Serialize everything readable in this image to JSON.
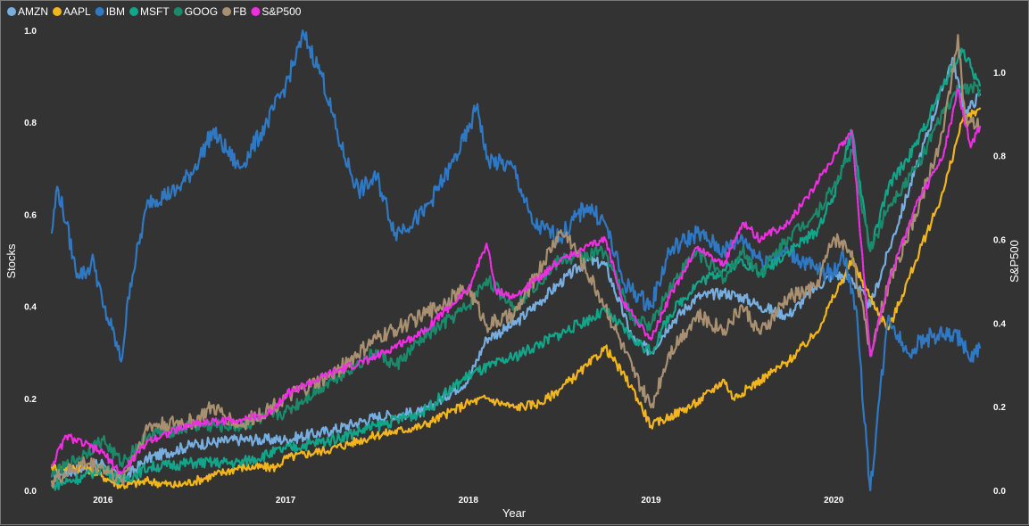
{
  "chart_data": {
    "type": "line",
    "xlabel": "Year",
    "ylabel": "Stocks",
    "y2label": "S&P500",
    "x_ticks": [
      "2016",
      "2017",
      "2018",
      "2019",
      "2020"
    ],
    "x_range": [
      2015.72,
      2020.8
    ],
    "ylim": [
      0,
      1
    ],
    "y_ticks": [
      "0.0",
      "0.2",
      "0.4",
      "0.6",
      "0.8",
      "1.0"
    ],
    "y2lim": [
      0,
      1.1
    ],
    "y2_ticks": [
      "0.0",
      "0.2",
      "0.4",
      "0.6",
      "0.8",
      "1.0"
    ],
    "grid": false,
    "legend_position": "top-left",
    "series": [
      {
        "name": "AMZN",
        "color": "#77aee0",
        "axis": "left",
        "points": [
          [
            2015.72,
            0.03
          ],
          [
            2016.0,
            0.06
          ],
          [
            2016.1,
            0.02
          ],
          [
            2016.25,
            0.07
          ],
          [
            2016.5,
            0.1
          ],
          [
            2016.75,
            0.11
          ],
          [
            2017.0,
            0.11
          ],
          [
            2017.25,
            0.13
          ],
          [
            2017.5,
            0.16
          ],
          [
            2017.75,
            0.17
          ],
          [
            2018.0,
            0.24
          ],
          [
            2018.1,
            0.33
          ],
          [
            2018.25,
            0.36
          ],
          [
            2018.5,
            0.45
          ],
          [
            2018.65,
            0.5
          ],
          [
            2018.75,
            0.49
          ],
          [
            2018.9,
            0.33
          ],
          [
            2019.0,
            0.3
          ],
          [
            2019.1,
            0.36
          ],
          [
            2019.25,
            0.42
          ],
          [
            2019.4,
            0.43
          ],
          [
            2019.5,
            0.42
          ],
          [
            2019.6,
            0.4
          ],
          [
            2019.75,
            0.38
          ],
          [
            2019.9,
            0.44
          ],
          [
            2020.0,
            0.47
          ],
          [
            2020.1,
            0.46
          ],
          [
            2020.2,
            0.4
          ],
          [
            2020.3,
            0.52
          ],
          [
            2020.45,
            0.7
          ],
          [
            2020.6,
            0.88
          ],
          [
            2020.65,
            0.94
          ],
          [
            2020.72,
            0.82
          ],
          [
            2020.8,
            0.86
          ]
        ]
      },
      {
        "name": "AAPL",
        "color": "#f2b51d",
        "axis": "left",
        "points": [
          [
            2015.72,
            0.05
          ],
          [
            2015.9,
            0.05
          ],
          [
            2016.0,
            0.03
          ],
          [
            2016.1,
            0.01
          ],
          [
            2016.25,
            0.02
          ],
          [
            2016.4,
            0.01
          ],
          [
            2016.5,
            0.02
          ],
          [
            2016.75,
            0.05
          ],
          [
            2016.95,
            0.05
          ],
          [
            2017.0,
            0.07
          ],
          [
            2017.25,
            0.09
          ],
          [
            2017.5,
            0.12
          ],
          [
            2017.75,
            0.14
          ],
          [
            2017.9,
            0.17
          ],
          [
            2018.0,
            0.19
          ],
          [
            2018.1,
            0.2
          ],
          [
            2018.25,
            0.18
          ],
          [
            2018.4,
            0.19
          ],
          [
            2018.5,
            0.22
          ],
          [
            2018.65,
            0.27
          ],
          [
            2018.75,
            0.31
          ],
          [
            2018.9,
            0.22
          ],
          [
            2019.0,
            0.14
          ],
          [
            2019.1,
            0.16
          ],
          [
            2019.25,
            0.19
          ],
          [
            2019.4,
            0.24
          ],
          [
            2019.45,
            0.2
          ],
          [
            2019.6,
            0.24
          ],
          [
            2019.75,
            0.28
          ],
          [
            2019.9,
            0.34
          ],
          [
            2020.0,
            0.42
          ],
          [
            2020.1,
            0.5
          ],
          [
            2020.2,
            0.42
          ],
          [
            2020.3,
            0.35
          ],
          [
            2020.45,
            0.5
          ],
          [
            2020.6,
            0.65
          ],
          [
            2020.7,
            0.8
          ],
          [
            2020.8,
            0.83
          ]
        ]
      },
      {
        "name": "IBM",
        "color": "#2f78c4",
        "axis": "left",
        "points": [
          [
            2015.72,
            0.56
          ],
          [
            2015.75,
            0.66
          ],
          [
            2015.8,
            0.58
          ],
          [
            2015.85,
            0.48
          ],
          [
            2015.9,
            0.47
          ],
          [
            2015.95,
            0.5
          ],
          [
            2016.0,
            0.4
          ],
          [
            2016.05,
            0.35
          ],
          [
            2016.1,
            0.28
          ],
          [
            2016.15,
            0.45
          ],
          [
            2016.25,
            0.63
          ],
          [
            2016.4,
            0.65
          ],
          [
            2016.5,
            0.7
          ],
          [
            2016.6,
            0.78
          ],
          [
            2016.75,
            0.7
          ],
          [
            2016.9,
            0.8
          ],
          [
            2017.0,
            0.88
          ],
          [
            2017.1,
            0.99
          ],
          [
            2017.2,
            0.9
          ],
          [
            2017.3,
            0.75
          ],
          [
            2017.4,
            0.65
          ],
          [
            2017.5,
            0.68
          ],
          [
            2017.6,
            0.56
          ],
          [
            2017.75,
            0.6
          ],
          [
            2017.9,
            0.7
          ],
          [
            2018.0,
            0.78
          ],
          [
            2018.05,
            0.84
          ],
          [
            2018.1,
            0.72
          ],
          [
            2018.25,
            0.7
          ],
          [
            2018.35,
            0.58
          ],
          [
            2018.5,
            0.55
          ],
          [
            2018.65,
            0.62
          ],
          [
            2018.75,
            0.58
          ],
          [
            2018.85,
            0.45
          ],
          [
            2019.0,
            0.4
          ],
          [
            2019.1,
            0.52
          ],
          [
            2019.25,
            0.56
          ],
          [
            2019.4,
            0.52
          ],
          [
            2019.5,
            0.55
          ],
          [
            2019.6,
            0.5
          ],
          [
            2019.75,
            0.52
          ],
          [
            2019.9,
            0.48
          ],
          [
            2020.0,
            0.47
          ],
          [
            2020.05,
            0.52
          ],
          [
            2020.12,
            0.4
          ],
          [
            2020.18,
            0.1
          ],
          [
            2020.2,
            0.0
          ],
          [
            2020.25,
            0.2
          ],
          [
            2020.3,
            0.38
          ],
          [
            2020.4,
            0.3
          ],
          [
            2020.5,
            0.33
          ],
          [
            2020.6,
            0.34
          ],
          [
            2020.7,
            0.33
          ],
          [
            2020.75,
            0.28
          ],
          [
            2020.8,
            0.31
          ]
        ]
      },
      {
        "name": "MSFT",
        "color": "#13a589",
        "axis": "left",
        "points": [
          [
            2015.72,
            0.01
          ],
          [
            2015.9,
            0.03
          ],
          [
            2016.0,
            0.05
          ],
          [
            2016.1,
            0.02
          ],
          [
            2016.25,
            0.05
          ],
          [
            2016.5,
            0.06
          ],
          [
            2016.75,
            0.06
          ],
          [
            2017.0,
            0.09
          ],
          [
            2017.25,
            0.11
          ],
          [
            2017.5,
            0.14
          ],
          [
            2017.75,
            0.17
          ],
          [
            2018.0,
            0.25
          ],
          [
            2018.25,
            0.29
          ],
          [
            2018.5,
            0.34
          ],
          [
            2018.75,
            0.39
          ],
          [
            2018.9,
            0.33
          ],
          [
            2019.0,
            0.3
          ],
          [
            2019.1,
            0.38
          ],
          [
            2019.25,
            0.45
          ],
          [
            2019.5,
            0.5
          ],
          [
            2019.6,
            0.47
          ],
          [
            2019.75,
            0.52
          ],
          [
            2019.9,
            0.56
          ],
          [
            2020.0,
            0.64
          ],
          [
            2020.1,
            0.78
          ],
          [
            2020.2,
            0.52
          ],
          [
            2020.3,
            0.66
          ],
          [
            2020.45,
            0.75
          ],
          [
            2020.6,
            0.88
          ],
          [
            2020.7,
            0.96
          ],
          [
            2020.8,
            0.88
          ]
        ]
      },
      {
        "name": "GOOG",
        "color": "#1b8a6b",
        "axis": "left",
        "points": [
          [
            2015.72,
            0.03
          ],
          [
            2015.9,
            0.08
          ],
          [
            2016.0,
            0.11
          ],
          [
            2016.1,
            0.06
          ],
          [
            2016.25,
            0.12
          ],
          [
            2016.5,
            0.14
          ],
          [
            2016.75,
            0.14
          ],
          [
            2017.0,
            0.17
          ],
          [
            2017.25,
            0.24
          ],
          [
            2017.5,
            0.3
          ],
          [
            2017.6,
            0.27
          ],
          [
            2017.75,
            0.33
          ],
          [
            2018.0,
            0.4
          ],
          [
            2018.1,
            0.46
          ],
          [
            2018.25,
            0.4
          ],
          [
            2018.5,
            0.5
          ],
          [
            2018.75,
            0.52
          ],
          [
            2018.9,
            0.37
          ],
          [
            2019.0,
            0.36
          ],
          [
            2019.1,
            0.44
          ],
          [
            2019.25,
            0.52
          ],
          [
            2019.4,
            0.46
          ],
          [
            2019.5,
            0.52
          ],
          [
            2019.6,
            0.47
          ],
          [
            2019.75,
            0.55
          ],
          [
            2019.9,
            0.6
          ],
          [
            2020.0,
            0.66
          ],
          [
            2020.1,
            0.74
          ],
          [
            2020.2,
            0.52
          ],
          [
            2020.3,
            0.62
          ],
          [
            2020.45,
            0.7
          ],
          [
            2020.6,
            0.82
          ],
          [
            2020.7,
            0.88
          ],
          [
            2020.8,
            0.87
          ]
        ]
      },
      {
        "name": "FB",
        "color": "#a89071",
        "axis": "left",
        "points": [
          [
            2015.72,
            0.02
          ],
          [
            2015.9,
            0.06
          ],
          [
            2016.0,
            0.05
          ],
          [
            2016.1,
            0.02
          ],
          [
            2016.25,
            0.14
          ],
          [
            2016.5,
            0.15
          ],
          [
            2016.6,
            0.18
          ],
          [
            2016.75,
            0.14
          ],
          [
            2017.0,
            0.2
          ],
          [
            2017.25,
            0.25
          ],
          [
            2017.5,
            0.33
          ],
          [
            2017.75,
            0.38
          ],
          [
            2018.0,
            0.44
          ],
          [
            2018.1,
            0.36
          ],
          [
            2018.25,
            0.38
          ],
          [
            2018.5,
            0.56
          ],
          [
            2018.55,
            0.55
          ],
          [
            2018.75,
            0.4
          ],
          [
            2018.9,
            0.26
          ],
          [
            2019.0,
            0.18
          ],
          [
            2019.1,
            0.3
          ],
          [
            2019.25,
            0.38
          ],
          [
            2019.4,
            0.35
          ],
          [
            2019.5,
            0.4
          ],
          [
            2019.6,
            0.34
          ],
          [
            2019.75,
            0.42
          ],
          [
            2019.9,
            0.44
          ],
          [
            2020.0,
            0.55
          ],
          [
            2020.1,
            0.52
          ],
          [
            2020.2,
            0.3
          ],
          [
            2020.3,
            0.45
          ],
          [
            2020.45,
            0.6
          ],
          [
            2020.6,
            0.78
          ],
          [
            2020.68,
            0.99
          ],
          [
            2020.72,
            0.8
          ],
          [
            2020.8,
            0.79
          ]
        ]
      },
      {
        "name": "S&P500",
        "color": "#ec2fe0",
        "axis": "right",
        "points": [
          [
            2015.72,
            0.06
          ],
          [
            2015.8,
            0.13
          ],
          [
            2015.9,
            0.11
          ],
          [
            2016.0,
            0.09
          ],
          [
            2016.1,
            0.04
          ],
          [
            2016.25,
            0.12
          ],
          [
            2016.5,
            0.16
          ],
          [
            2016.75,
            0.17
          ],
          [
            2016.9,
            0.18
          ],
          [
            2017.0,
            0.23
          ],
          [
            2017.25,
            0.28
          ],
          [
            2017.5,
            0.32
          ],
          [
            2017.75,
            0.38
          ],
          [
            2018.0,
            0.48
          ],
          [
            2018.1,
            0.59
          ],
          [
            2018.15,
            0.48
          ],
          [
            2018.25,
            0.46
          ],
          [
            2018.5,
            0.55
          ],
          [
            2018.75,
            0.6
          ],
          [
            2018.85,
            0.45
          ],
          [
            2019.0,
            0.36
          ],
          [
            2019.1,
            0.46
          ],
          [
            2019.25,
            0.58
          ],
          [
            2019.4,
            0.54
          ],
          [
            2019.5,
            0.64
          ],
          [
            2019.6,
            0.6
          ],
          [
            2019.75,
            0.64
          ],
          [
            2019.9,
            0.73
          ],
          [
            2020.0,
            0.8
          ],
          [
            2020.1,
            0.86
          ],
          [
            2020.2,
            0.32
          ],
          [
            2020.3,
            0.5
          ],
          [
            2020.45,
            0.68
          ],
          [
            2020.6,
            0.8
          ],
          [
            2020.68,
            0.96
          ],
          [
            2020.75,
            0.82
          ],
          [
            2020.8,
            0.87
          ]
        ]
      }
    ]
  }
}
